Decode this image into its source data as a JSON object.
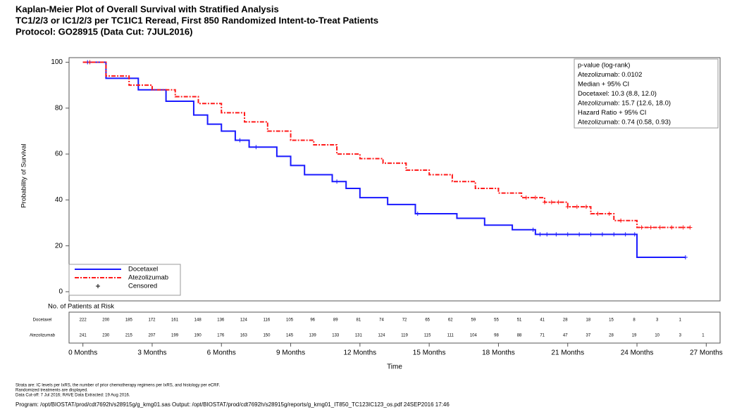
{
  "chart_data": {
    "type": "step",
    "title": [
      "Kaplan-Meier Plot of Overall Survival with Stratified Analysis",
      "TC1/2/3 or IC1/2/3 per TC1IC1 Reread, First 850 Randomized Intent-to-Treat Patients",
      "Protocol: GO28915 (Data Cut: 7JUL2016)"
    ],
    "ylabel": "Probability of Survival",
    "xlabel": "Time",
    "xlim": [
      -0.6,
      27.6
    ],
    "ylim": [
      -4,
      102
    ],
    "xticks": [
      {
        "value": 0,
        "label": "0 Months"
      },
      {
        "value": 3,
        "label": "3 Months"
      },
      {
        "value": 6,
        "label": "6 Months"
      },
      {
        "value": 9,
        "label": "9 Months"
      },
      {
        "value": 12,
        "label": "12 Months"
      },
      {
        "value": 15,
        "label": "15 Months"
      },
      {
        "value": 18,
        "label": "18 Months"
      },
      {
        "value": 21,
        "label": "21 Months"
      },
      {
        "value": 24,
        "label": "24 Months"
      },
      {
        "value": 27,
        "label": "27 Months"
      }
    ],
    "yticks": [
      0,
      20,
      40,
      60,
      80,
      100
    ],
    "series": [
      {
        "name": "Docetaxel",
        "color": "#1a1aff",
        "dash": "none",
        "x": [
          0,
          1,
          2.4,
          3.6,
          4.8,
          5.4,
          6,
          6.6,
          7.2,
          8.4,
          9,
          9.6,
          10.8,
          11.4,
          12,
          13.2,
          14.4,
          16.2,
          17.4,
          18.6,
          19.6,
          24,
          26.1
        ],
        "values": [
          100,
          93,
          88,
          83,
          77,
          73,
          70,
          66,
          63,
          59,
          55,
          51,
          48,
          45,
          41,
          38,
          34,
          32,
          29,
          27,
          25,
          15,
          15
        ],
        "censored": [
          0.2,
          6.8,
          7.5,
          11,
          14.5,
          19.5,
          19.8,
          20.1,
          20.5,
          21,
          21.5,
          22,
          22.5,
          23,
          23.5,
          23.9,
          26.1
        ]
      },
      {
        "name": "Atezolizumab",
        "color": "#ff1a1a",
        "dash": "6,2,2,2",
        "x": [
          0,
          1,
          2,
          3,
          4,
          5,
          6,
          7,
          8,
          9,
          10,
          11,
          12,
          13,
          14,
          15,
          16,
          17,
          18,
          19,
          20,
          21,
          22,
          23,
          24,
          26.3
        ],
        "values": [
          100,
          94,
          90,
          88,
          85,
          82,
          78,
          74,
          70,
          66,
          64,
          60,
          58,
          56,
          53,
          51,
          48,
          45,
          43,
          41,
          39,
          37,
          34,
          31,
          28,
          28
        ],
        "censored": [
          0.3,
          19.2,
          19.6,
          20,
          20.3,
          20.6,
          21,
          21.4,
          21.8,
          22.3,
          22.8,
          23.3,
          24.2,
          24.6,
          25,
          25.5,
          26,
          26.3
        ]
      }
    ],
    "censored_label": "Censored",
    "legend": "lower left",
    "stats": [
      "p-value (log-rank)",
      "Atezolizumab: 0.0102",
      "Median + 95% CI",
      "Docetaxel: 10.3 (8.8, 12.0)",
      "Atezolizumab: 15.7 (12.6, 18.0)",
      "Hazard Ratio + 95% CI",
      "Atezolizumab: 0.74 (0.58, 0.93)"
    ],
    "risk_title": "No. of Patients at Risk",
    "risk_table": [
      {
        "name": "Docetaxel",
        "values": [
          222,
          200,
          185,
          172,
          161,
          148,
          136,
          124,
          116,
          105,
          96,
          89,
          81,
          74,
          72,
          65,
          62,
          59,
          55,
          51,
          41,
          28,
          18,
          15,
          8,
          3,
          1
        ]
      },
      {
        "name": "Atezolizumab",
        "values": [
          241,
          230,
          215,
          207,
          199,
          190,
          176,
          163,
          150,
          145,
          139,
          133,
          131,
          124,
          119,
          115,
          111,
          104,
          98,
          88,
          71,
          47,
          37,
          28,
          19,
          10,
          3,
          1
        ]
      }
    ],
    "footnotes": [
      "Strata are: IC levels per IxRS, the number of prior chemotherapy regimens per IxRS, and histology per eCRF.",
      "Randomized treatments are displayed.",
      "Data Cut-off: 7 Jul 2016; RAVE Data Extracted: 19 Aug 2016."
    ],
    "program": "Program: /opt/BIOSTAT/prod/cdt7692h/s28915g/g_kmg01.sas Output: /opt/BIOSTAT/prod/cdt7692h/s28915g/reports/g_kmg01_IT850_TC123IC123_os.pdf 24SEP2016 17:46"
  }
}
